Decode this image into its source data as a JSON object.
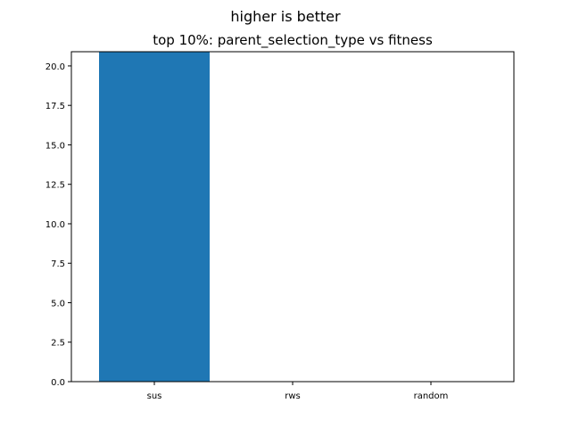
{
  "chart_data": {
    "type": "bar",
    "suptitle": "higher is better",
    "title": "top 10%: parent_selection_type vs fitness",
    "xlabel": "",
    "ylabel": "",
    "categories": [
      "sus",
      "rws",
      "random"
    ],
    "values": [
      21,
      0,
      0
    ],
    "ylim": [
      0,
      20.9
    ],
    "yticks": [
      "0.0",
      "2.5",
      "5.0",
      "7.5",
      "10.0",
      "12.5",
      "15.0",
      "17.5",
      "20.0"
    ],
    "bar_color": "#1f77b4",
    "grid": false
  }
}
